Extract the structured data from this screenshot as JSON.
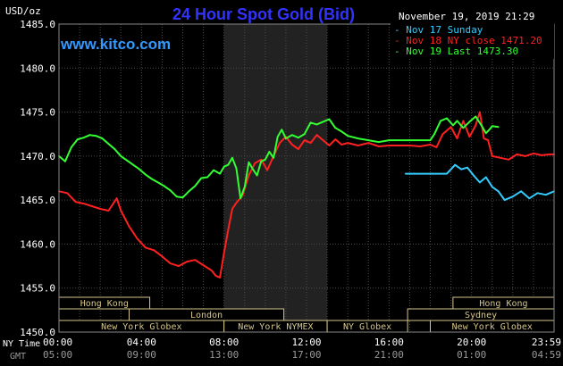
{
  "chart_data": {
    "type": "line",
    "title": "24 Hour Spot Gold (Bid)",
    "watermark": "www.kitco.com",
    "timestamp": "November 19, 2019 21:29",
    "ylabel": "USD/oz",
    "ylim": [
      1450,
      1485
    ],
    "y_ticks": [
      "1485.0",
      "1480.0",
      "1475.0",
      "1470.0",
      "1465.0",
      "1460.0",
      "1455.0",
      "1450.0"
    ],
    "y_tick_values": [
      1485,
      1480,
      1475,
      1470,
      1465,
      1460,
      1455,
      1450
    ],
    "xlim_hours": [
      0,
      24
    ],
    "x_row1_label": "NY Time",
    "x_row2_label": "GMT",
    "x_ticks_ny": [
      "00:00",
      "04:00",
      "08:00",
      "12:00",
      "16:00",
      "20:00",
      "23:59"
    ],
    "x_ticks_gmt": [
      "05:00",
      "09:00",
      "13:00",
      "17:00",
      "21:00",
      "01:00",
      "04:59"
    ],
    "x_tick_hours": [
      0,
      4,
      8,
      12,
      16,
      20,
      24
    ],
    "highlight_hours": [
      8.0,
      13.0
    ],
    "grid": true,
    "legend_position": "top-right",
    "sessions": [
      {
        "label": "Hong Kong",
        "start": 0,
        "end": 4.4,
        "row": 0
      },
      {
        "label": "London",
        "start": 3.4,
        "end": 10.9,
        "row": 1
      },
      {
        "label": "New York Globex",
        "start": 0,
        "end": 8.0,
        "row": 2
      },
      {
        "label": "New York NYMEX",
        "start": 8.0,
        "end": 13.0,
        "row": 2
      },
      {
        "label": "NY Globex",
        "start": 13.0,
        "end": 16.9,
        "row": 2
      },
      {
        "label": "Hong Kong",
        "start": 19.1,
        "end": 24,
        "row": 0
      },
      {
        "label": "Sydney",
        "start": 16.9,
        "end": 24,
        "row": 1
      },
      {
        "label": "New York Globex",
        "start": 18.0,
        "end": 24,
        "row": 2
      }
    ],
    "series": [
      {
        "name": "Nov 17 Sunday",
        "color": "#33ccff",
        "x": [
          16.8,
          17.2,
          17.6,
          18.0,
          18.4,
          18.8,
          19.2,
          19.5,
          19.8,
          20.1,
          20.4,
          20.7,
          21.0,
          21.3,
          21.6,
          22.0,
          22.4,
          22.8,
          23.2,
          23.6,
          24.0
        ],
        "values": [
          1468.0,
          1468.0,
          1468.0,
          1468.0,
          1468.0,
          1468.0,
          1469.0,
          1468.5,
          1468.7,
          1467.8,
          1467.0,
          1467.6,
          1466.5,
          1466.0,
          1465.0,
          1465.4,
          1466.0,
          1465.2,
          1465.8,
          1465.6,
          1466.0
        ]
      },
      {
        "name": "Nov 18 NY close 1471.20",
        "color": "#ff2020",
        "x": [
          0,
          0.4,
          0.8,
          1.2,
          1.6,
          2.0,
          2.4,
          2.8,
          3.0,
          3.4,
          3.8,
          4.2,
          4.6,
          5.0,
          5.4,
          5.8,
          6.2,
          6.6,
          7.0,
          7.4,
          7.6,
          7.8,
          8.0,
          8.2,
          8.4,
          8.6,
          8.9,
          9.2,
          9.5,
          9.8,
          10.1,
          10.4,
          10.7,
          11.0,
          11.3,
          11.6,
          11.9,
          12.2,
          12.5,
          12.8,
          13.1,
          13.4,
          13.7,
          14.0,
          14.5,
          15.0,
          15.5,
          16.0,
          16.5,
          17.0,
          17.5,
          18.0,
          18.3,
          18.6,
          19.0,
          19.3,
          19.6,
          19.9,
          20.2,
          20.4,
          20.6,
          20.8,
          21.0,
          21.4,
          21.8,
          22.2,
          22.6,
          23.0,
          23.4,
          23.8,
          24.0
        ],
        "values": [
          1466.0,
          1465.8,
          1464.8,
          1464.6,
          1464.3,
          1464.0,
          1463.8,
          1465.2,
          1463.8,
          1462.0,
          1460.6,
          1459.6,
          1459.3,
          1458.6,
          1457.8,
          1457.5,
          1458.0,
          1458.2,
          1457.6,
          1457.0,
          1456.4,
          1456.2,
          1459.0,
          1461.6,
          1464.0,
          1464.7,
          1465.5,
          1467.8,
          1469.2,
          1469.6,
          1468.4,
          1470.0,
          1471.5,
          1472.2,
          1471.3,
          1470.8,
          1471.8,
          1471.5,
          1472.4,
          1471.8,
          1471.2,
          1471.9,
          1471.3,
          1471.5,
          1471.2,
          1471.5,
          1471.1,
          1471.2,
          1471.2,
          1471.2,
          1471.1,
          1471.3,
          1471.0,
          1472.5,
          1473.3,
          1472.0,
          1474.0,
          1472.2,
          1473.5,
          1475.0,
          1472.0,
          1471.8,
          1470.0,
          1469.8,
          1469.6,
          1470.2,
          1470.0,
          1470.3,
          1470.1,
          1470.2,
          1470.2
        ]
      },
      {
        "name": "Nov 19 Last 1473.30",
        "color": "#33ff33",
        "x": [
          0,
          0.3,
          0.6,
          0.9,
          1.2,
          1.5,
          1.8,
          2.1,
          2.4,
          2.7,
          3.0,
          3.3,
          3.6,
          3.9,
          4.2,
          4.5,
          4.8,
          5.1,
          5.4,
          5.7,
          6.0,
          6.3,
          6.6,
          6.9,
          7.2,
          7.5,
          7.8,
          8.0,
          8.2,
          8.4,
          8.6,
          8.8,
          9.0,
          9.2,
          9.4,
          9.6,
          9.8,
          10.0,
          10.2,
          10.4,
          10.6,
          10.8,
          11.0,
          11.3,
          11.6,
          11.9,
          12.2,
          12.5,
          12.8,
          13.1,
          13.4,
          13.7,
          14.0,
          14.5,
          15.0,
          15.5,
          16.0,
          16.5,
          17.0,
          17.5,
          18.0,
          18.2,
          18.5,
          18.8,
          19.1,
          19.3,
          19.6,
          19.9,
          20.2,
          20.5,
          20.7,
          20.9,
          21.0,
          21.3
        ],
        "values": [
          1470.0,
          1469.4,
          1471.0,
          1471.9,
          1472.1,
          1472.4,
          1472.3,
          1472.0,
          1471.4,
          1470.8,
          1470.0,
          1469.5,
          1469.0,
          1468.5,
          1467.9,
          1467.4,
          1467.0,
          1466.6,
          1466.1,
          1465.4,
          1465.3,
          1466.0,
          1466.6,
          1467.5,
          1467.6,
          1468.4,
          1468.0,
          1468.8,
          1469.0,
          1469.8,
          1468.6,
          1465.2,
          1466.5,
          1469.3,
          1468.5,
          1467.8,
          1469.4,
          1469.6,
          1470.5,
          1469.8,
          1472.2,
          1473.0,
          1472.0,
          1472.4,
          1472.1,
          1472.5,
          1473.8,
          1473.6,
          1473.9,
          1474.2,
          1473.2,
          1472.8,
          1472.3,
          1472.0,
          1471.8,
          1471.6,
          1471.8,
          1471.8,
          1471.8,
          1471.8,
          1471.8,
          1472.5,
          1474.0,
          1474.3,
          1473.5,
          1474.0,
          1473.2,
          1473.9,
          1474.5,
          1473.4,
          1472.6,
          1473.1,
          1473.4,
          1473.3
        ]
      }
    ]
  }
}
